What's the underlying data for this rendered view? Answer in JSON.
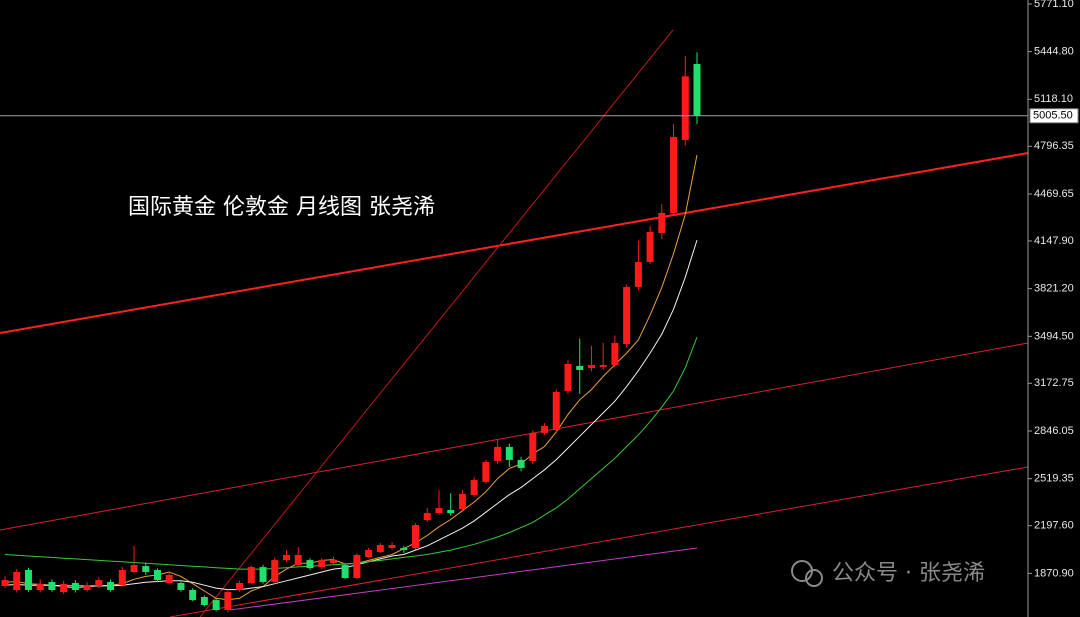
{
  "chart_data": {
    "type": "candlestick",
    "title": "国际黄金  伦敦金  月线图 张尧浠",
    "watermark": "公众号 · 张尧浠",
    "ylim": [
      1572,
      5798.5
    ],
    "yticks": [
      {
        "value": 5771.1,
        "label": "5771.10"
      },
      {
        "value": 5444.8,
        "label": "5444.80"
      },
      {
        "value": 5118.1,
        "label": "5118.10"
      },
      {
        "value": 4796.35,
        "label": "4796.35"
      },
      {
        "value": 4469.65,
        "label": "4469.65"
      },
      {
        "value": 4147.9,
        "label": "4147.90"
      },
      {
        "value": 3821.2,
        "label": "3821.20"
      },
      {
        "value": 3494.5,
        "label": "3494.50"
      },
      {
        "value": 3172.75,
        "label": "3172.75"
      },
      {
        "value": 2846.05,
        "label": "2846.05"
      },
      {
        "value": 2519.35,
        "label": "2519.35"
      },
      {
        "value": 2197.6,
        "label": "2197.60"
      },
      {
        "value": 1870.9,
        "label": "1870.90"
      }
    ],
    "last_price": {
      "value": 5005.5,
      "label": "5005.50"
    },
    "up_color": "#ff1a1a",
    "down_color": "#1fe06a",
    "open": [
      1784,
      1757,
      1894,
      1757,
      1812,
      1743,
      1805,
      1757,
      1784,
      1812,
      1791,
      1880,
      1921,
      1894,
      1805,
      1805,
      1757,
      1709,
      1688,
      1620,
      1757,
      1805,
      1914,
      1812,
      1962,
      1928,
      1962,
      1914,
      1941,
      1928,
      1839,
      1983,
      2017,
      2045,
      2045,
      2045,
      2236,
      2284,
      2305,
      2312,
      2408,
      2497,
      2641,
      2737,
      2648,
      2641,
      2833,
      2853,
      3120,
      3292,
      3278,
      3285,
      3298,
      3442,
      3833,
      4004,
      4202,
      4340,
      4840,
      5360
    ],
    "high": [
      1850,
      1900,
      1910,
      1830,
      1830,
      1820,
      1825,
      1810,
      1845,
      1830,
      1915,
      2060,
      1945,
      1905,
      1880,
      1820,
      1770,
      1720,
      1700,
      1760,
      1820,
      1925,
      1930,
      1980,
      2030,
      2050,
      1975,
      1975,
      1985,
      1940,
      2010,
      2045,
      2080,
      2085,
      2060,
      2215,
      2320,
      2440,
      2420,
      2440,
      2530,
      2650,
      2790,
      2760,
      2670,
      2850,
      2900,
      3130,
      3330,
      3480,
      3430,
      3450,
      3500,
      3850,
      4150,
      4250,
      4400,
      4950,
      5415,
      5440
    ],
    "low": [
      1770,
      1740,
      1745,
      1740,
      1745,
      1730,
      1740,
      1745,
      1770,
      1745,
      1780,
      1870,
      1860,
      1810,
      1795,
      1745,
      1680,
      1645,
      1610,
      1605,
      1745,
      1795,
      1800,
      1800,
      1950,
      1920,
      1895,
      1900,
      1930,
      1830,
      1830,
      1975,
      2010,
      2035,
      2010,
      2035,
      2225,
      2270,
      2265,
      2300,
      2395,
      2485,
      2620,
      2600,
      2570,
      2620,
      2820,
      2840,
      3100,
      3100,
      3255,
      3265,
      3280,
      3420,
      3810,
      3990,
      4160,
      4320,
      4800,
      4950
    ],
    "close": [
      1825,
      1880,
      1757,
      1798,
      1757,
      1798,
      1757,
      1791,
      1825,
      1757,
      1894,
      1928,
      1880,
      1825,
      1860,
      1757,
      1688,
      1654,
      1620,
      1743,
      1805,
      1914,
      1812,
      1962,
      1997,
      1997,
      1907,
      1962,
      1962,
      1839,
      1997,
      2031,
      2065,
      2065,
      2031,
      2202,
      2284,
      2318,
      2284,
      2415,
      2510,
      2634,
      2737,
      2648,
      2593,
      2833,
      2881,
      3113,
      3305,
      3264,
      3298,
      3298,
      3449,
      3833,
      4004,
      4209,
      4340,
      4860,
      5276,
      5005.5
    ],
    "series": [
      {
        "color": "#e8a33a",
        "values": [
          1810,
          1815,
          1800,
          1795,
          1790,
          1780,
          1770,
          1780,
          1785,
          1790,
          1800,
          1830,
          1850,
          1860,
          1880,
          1850,
          1800,
          1750,
          1700,
          1690,
          1700,
          1750,
          1780,
          1850,
          1900,
          1940,
          1940,
          1960,
          1965,
          1935,
          1940,
          1960,
          1980,
          2000,
          2040,
          2080,
          2130,
          2190,
          2240,
          2300,
          2360,
          2430,
          2520,
          2590,
          2620,
          2690,
          2740,
          2840,
          2960,
          3060,
          3130,
          3220,
          3300,
          3380,
          3470,
          3640,
          3830,
          4060,
          4330,
          4737
        ]
      },
      {
        "color": "#f2f2f2",
        "values": [
          1790,
          1795,
          1790,
          1790,
          1790,
          1785,
          1785,
          1785,
          1785,
          1785,
          1790,
          1800,
          1810,
          1815,
          1820,
          1820,
          1810,
          1790,
          1770,
          1760,
          1760,
          1770,
          1780,
          1800,
          1820,
          1840,
          1860,
          1880,
          1900,
          1910,
          1930,
          1950,
          1970,
          1990,
          2000,
          2030,
          2060,
          2100,
          2140,
          2180,
          2230,
          2290,
          2350,
          2410,
          2460,
          2520,
          2580,
          2650,
          2730,
          2810,
          2890,
          2970,
          3050,
          3150,
          3260,
          3380,
          3510,
          3680,
          3900,
          4154
        ]
      },
      {
        "color": "#39c83a",
        "values": [
          2000,
          1995,
          1990,
          1985,
          1980,
          1975,
          1970,
          1965,
          1960,
          1955,
          1950,
          1945,
          1940,
          1935,
          1930,
          1925,
          1920,
          1915,
          1910,
          1905,
          1900,
          1900,
          1900,
          1905,
          1910,
          1915,
          1920,
          1925,
          1930,
          1935,
          1940,
          1950,
          1960,
          1970,
          1980,
          1990,
          2000,
          2015,
          2030,
          2050,
          2070,
          2095,
          2120,
          2150,
          2185,
          2220,
          2270,
          2320,
          2380,
          2450,
          2520,
          2590,
          2660,
          2740,
          2820,
          2910,
          3010,
          3120,
          3280,
          3490
        ]
      }
    ]
  }
}
